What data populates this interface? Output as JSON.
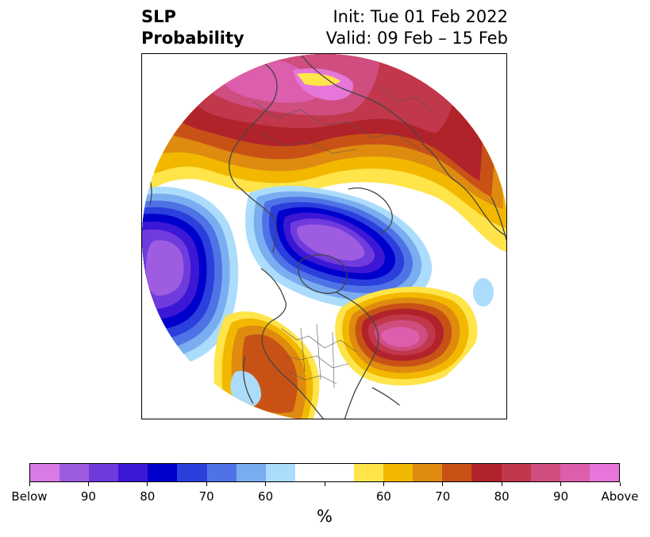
{
  "header": {
    "variable": "SLP",
    "field": "Probability",
    "init": "Init: Tue 01 Feb 2022",
    "valid": "Valid: 09 Feb – 15 Feb"
  },
  "legend": {
    "unit": "%",
    "colors": [
      "#d97ae6",
      "#9e5ce1",
      "#6f3bdc",
      "#3d17d6",
      "#0000cc",
      "#2a3fdc",
      "#4f73e6",
      "#7aadf0",
      "#acdcfb",
      "#ffffff",
      "#ffffff",
      "#ffe44a",
      "#f2b800",
      "#de8b10",
      "#c85216",
      "#b1232a",
      "#c1374c",
      "#cf4d7f",
      "#dc5eac",
      "#e676d9"
    ],
    "ticks": [
      {
        "label": "Below",
        "index": 0
      },
      {
        "label": "90",
        "index": 2
      },
      {
        "label": "80",
        "index": 4
      },
      {
        "label": "70",
        "index": 6
      },
      {
        "label": "60",
        "index": 8
      },
      {
        "label": "",
        "index": 10
      },
      {
        "label": "60",
        "index": 12
      },
      {
        "label": "70",
        "index": 14
      },
      {
        "label": "80",
        "index": 16
      },
      {
        "label": "90",
        "index": 18
      },
      {
        "label": "Above",
        "index": 20
      }
    ]
  },
  "map": {
    "projection": "north-polar-stereographic",
    "anomalies": [
      {
        "name": "above-normal-siberia-arctic",
        "sign": "above",
        "max_probability": 90
      },
      {
        "name": "below-normal-arctic-greenland",
        "sign": "below",
        "max_probability": 90
      },
      {
        "name": "below-normal-europe",
        "sign": "below",
        "max_probability": 90
      },
      {
        "name": "above-normal-north-pacific",
        "sign": "above",
        "max_probability": 90
      },
      {
        "name": "above-normal-western-north-america",
        "sign": "above",
        "max_probability": 70
      }
    ]
  }
}
